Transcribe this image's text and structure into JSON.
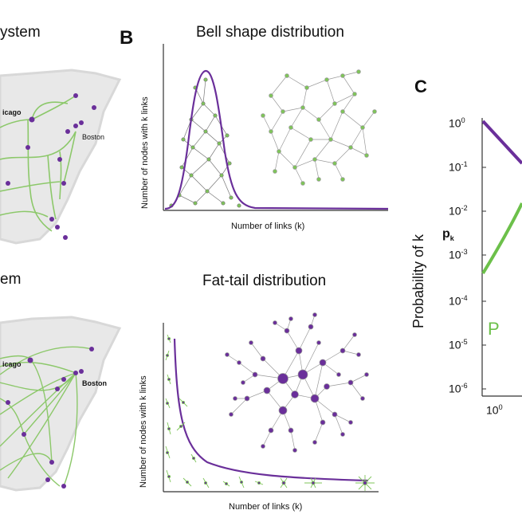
{
  "panel_a": {
    "top_title_fragment": "ystem",
    "bottom_title_fragment": "em",
    "cities_top": [
      "icago",
      "Boston"
    ],
    "cities_bottom": [
      "icago",
      "Boston"
    ]
  },
  "panel_b": {
    "letter": "B",
    "top": {
      "title": "Bell shape distribution",
      "ylabel": "Number of nodes with k links",
      "xlabel": "Number of links (k)"
    },
    "bottom": {
      "title": "Fat-tail distribution",
      "ylabel": "Number of nodes with k links",
      "xlabel": "Number of links (k)"
    }
  },
  "panel_c": {
    "letter": "C",
    "ylabel": "Probability of k",
    "pk_label": "p",
    "pk_sub": "k",
    "ticks": [
      {
        "base": "10",
        "exp": "0"
      },
      {
        "base": "10",
        "exp": "-1"
      },
      {
        "base": "10",
        "exp": "-2"
      },
      {
        "base": "10",
        "exp": "-3"
      },
      {
        "base": "10",
        "exp": "-4"
      },
      {
        "base": "10",
        "exp": "-5"
      },
      {
        "base": "10",
        "exp": "-6"
      }
    ],
    "x_tick": {
      "base": "10",
      "exp": "0"
    },
    "green_letter": "P",
    "colors": {
      "purple": "#6a2f9a",
      "green": "#6cc04a"
    }
  },
  "colors": {
    "purple": "#6a2f9a",
    "green": "#7fc45a",
    "edge": "#999999",
    "mapgray": "#e6e6e6"
  }
}
